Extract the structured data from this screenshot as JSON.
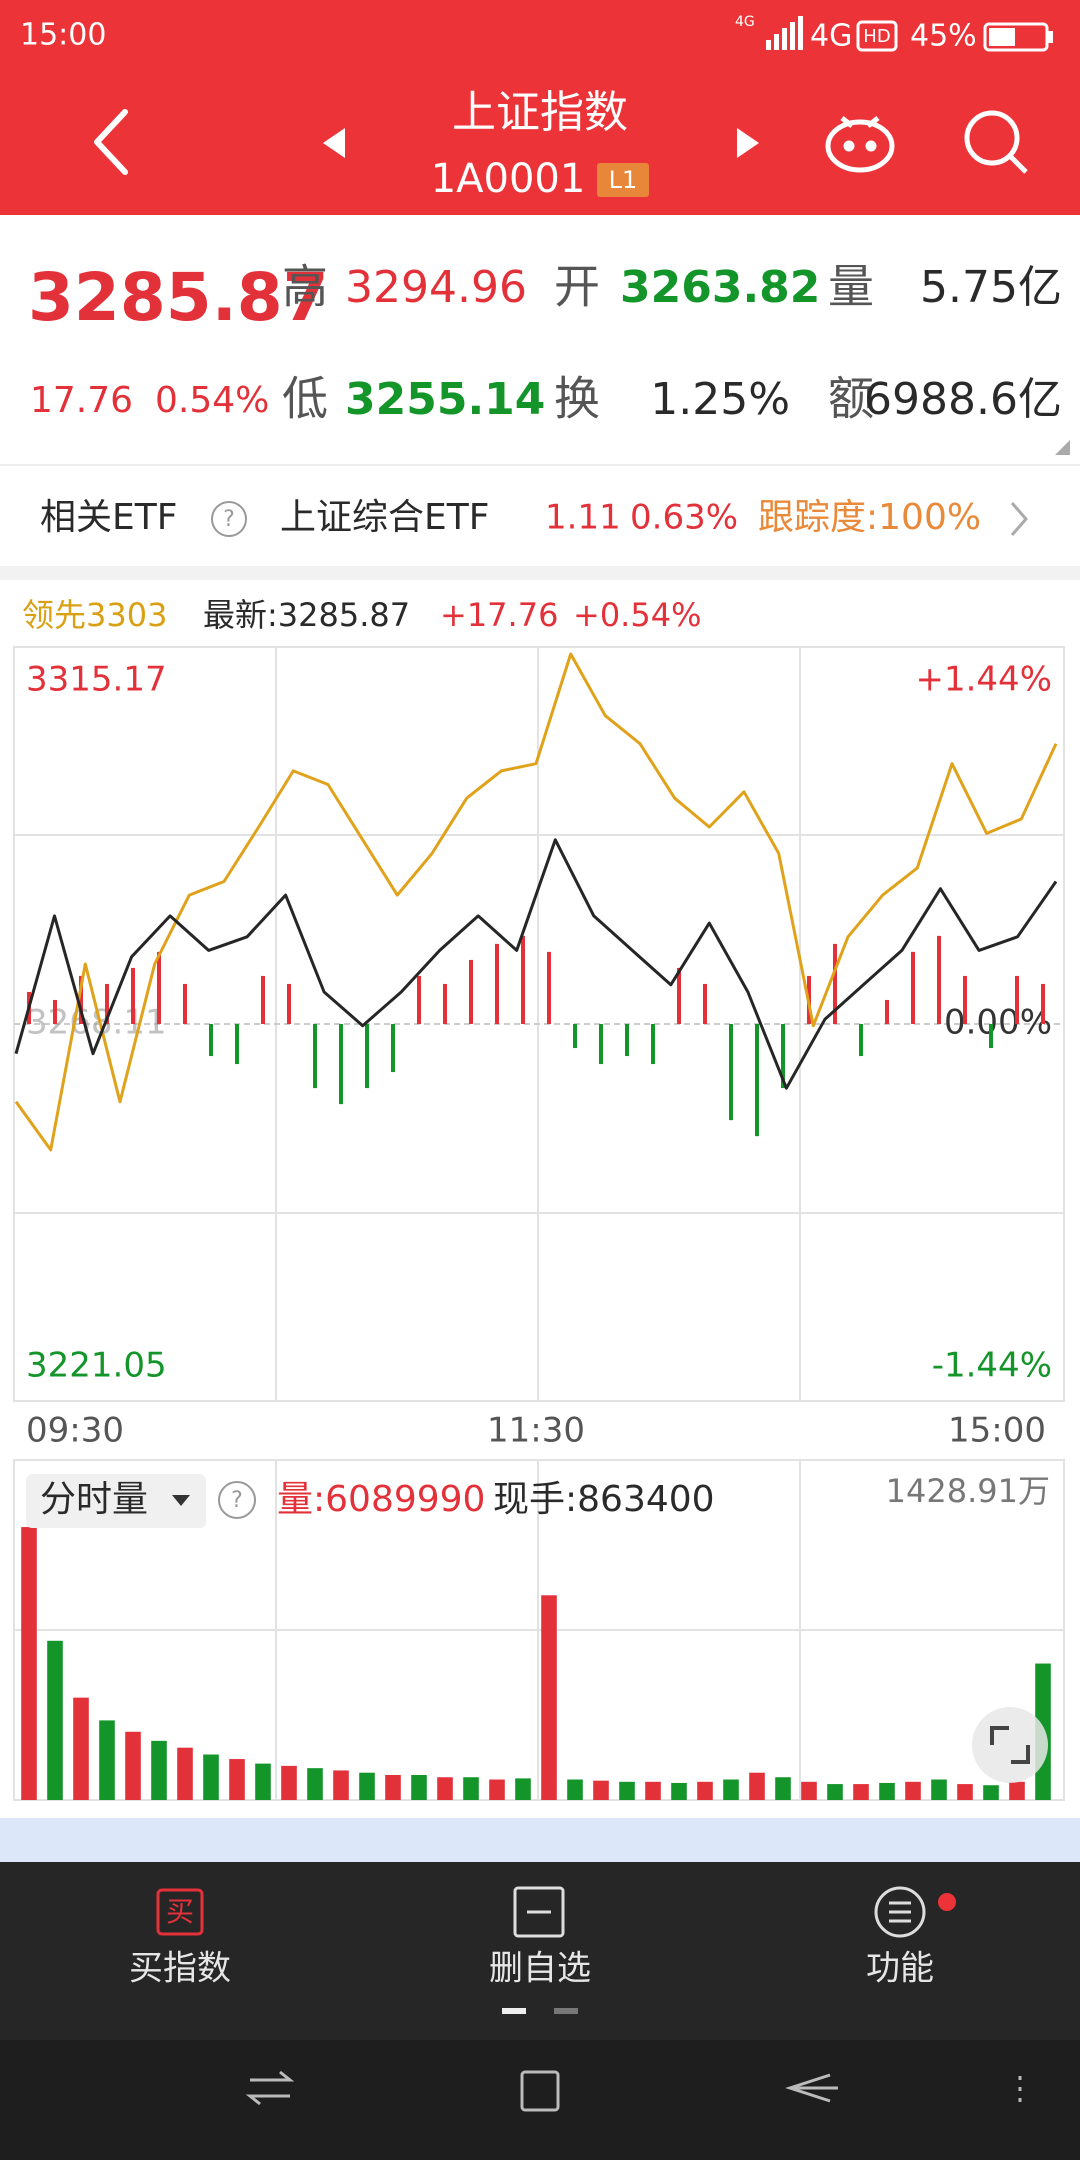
{
  "status_bar": {
    "time": "15:00",
    "sim": "4G",
    "network": "4G",
    "hd": "HD",
    "battery": "45%"
  },
  "header": {
    "title": "上证指数",
    "code": "1A0001",
    "level": "L1"
  },
  "quote": {
    "price": "3285.87",
    "change": "17.76",
    "change_pct": "0.54%",
    "high_label": "高",
    "high": "3294.96",
    "open_label": "开",
    "open": "3263.82",
    "volume_label": "量",
    "volume": "5.75亿",
    "low_label": "低",
    "low": "3255.14",
    "turnover_label": "换",
    "turnover": "1.25%",
    "amount_label": "额",
    "amount": "6988.6亿"
  },
  "etf": {
    "label": "相关ETF",
    "help": "?",
    "name": "上证综合ETF",
    "price": "1.11",
    "change_pct": "0.63%",
    "tracking": "跟踪度:100%"
  },
  "chart_data": [
    {
      "type": "line",
      "legend": {
        "leading": "领先3303",
        "latest": "最新:3285.87",
        "change": "+17.76",
        "change_pct": "+0.54%"
      },
      "x_labels": [
        "09:30",
        "11:30",
        "15:00"
      ],
      "ylim": [
        3221.05,
        3315.17
      ],
      "yticks": [
        3315.17,
        3268.11,
        3221.05
      ],
      "y2lim": [
        -1.44,
        1.44
      ],
      "y2ticks": [
        {
          "value": 1.44,
          "label": "+1.44%"
        },
        {
          "value": 0,
          "label": "0.00%"
        },
        {
          "value": -1.44,
          "label": "-1.44%"
        }
      ],
      "series": [
        {
          "color": "#e0a21b",
          "values": [
            3258.4,
            3252.4,
            3275.6,
            3258.4,
            3275.6,
            3284.2,
            3285.9,
            3292.7,
            3299.7,
            3298.0,
            3291.1,
            3284.2,
            3289.4,
            3296.3,
            3299.7,
            3300.6,
            3314.3,
            3306.6,
            3303.1,
            3296.3,
            3292.7,
            3297.1,
            3289.4,
            3267.9,
            3279.0,
            3284.2,
            3287.6,
            3300.6,
            3291.9,
            3293.7,
            3303.1
          ]
        },
        {
          "color": "#262626",
          "values": [
            3264.4,
            3281.6,
            3264.4,
            3276.5,
            3281.6,
            3277.3,
            3279.0,
            3284.2,
            3272.1,
            3267.9,
            3272.1,
            3277.3,
            3281.6,
            3277.3,
            3291.1,
            3281.6,
            3277.3,
            3273.0,
            3280.7,
            3272.1,
            3260.1,
            3268.7,
            3273.0,
            3277.3,
            3285.0,
            3277.3,
            3279.0,
            3285.9
          ]
        }
      ],
      "bars": {
        "up_color": "#e3313a",
        "down_color": "#14952a",
        "values": [
          4,
          3,
          6,
          5,
          7,
          9,
          5,
          -4,
          -5,
          6,
          5,
          -8,
          -10,
          -8,
          -6,
          6,
          5,
          8,
          10,
          11,
          9,
          -3,
          -5,
          -4,
          -5,
          7,
          5,
          -12,
          -14,
          -8,
          6,
          10,
          -4,
          3,
          9,
          11,
          6,
          -3,
          6,
          5
        ]
      }
    },
    {
      "type": "bar",
      "selector": "分时量",
      "volume_label": "量:6089990",
      "hand_label": "现手:863400",
      "ylim": [
        0,
        1428.91
      ],
      "yticks": [
        {
          "value": 1428.91,
          "label": "1428.91万"
        }
      ],
      "colors": [
        "#e3313a",
        "#14952a"
      ],
      "values": [
        1200,
        700,
        450,
        350,
        300,
        260,
        230,
        200,
        180,
        160,
        150,
        140,
        130,
        120,
        110,
        110,
        100,
        100,
        90,
        95,
        900,
        90,
        85,
        80,
        80,
        75,
        80,
        90,
        120,
        100,
        80,
        70,
        70,
        75,
        80,
        90,
        70,
        65,
        80,
        600
      ]
    }
  ],
  "bottom_nav": {
    "buy_icon": "买",
    "items": [
      "买指数",
      "删自选",
      "功能"
    ]
  }
}
